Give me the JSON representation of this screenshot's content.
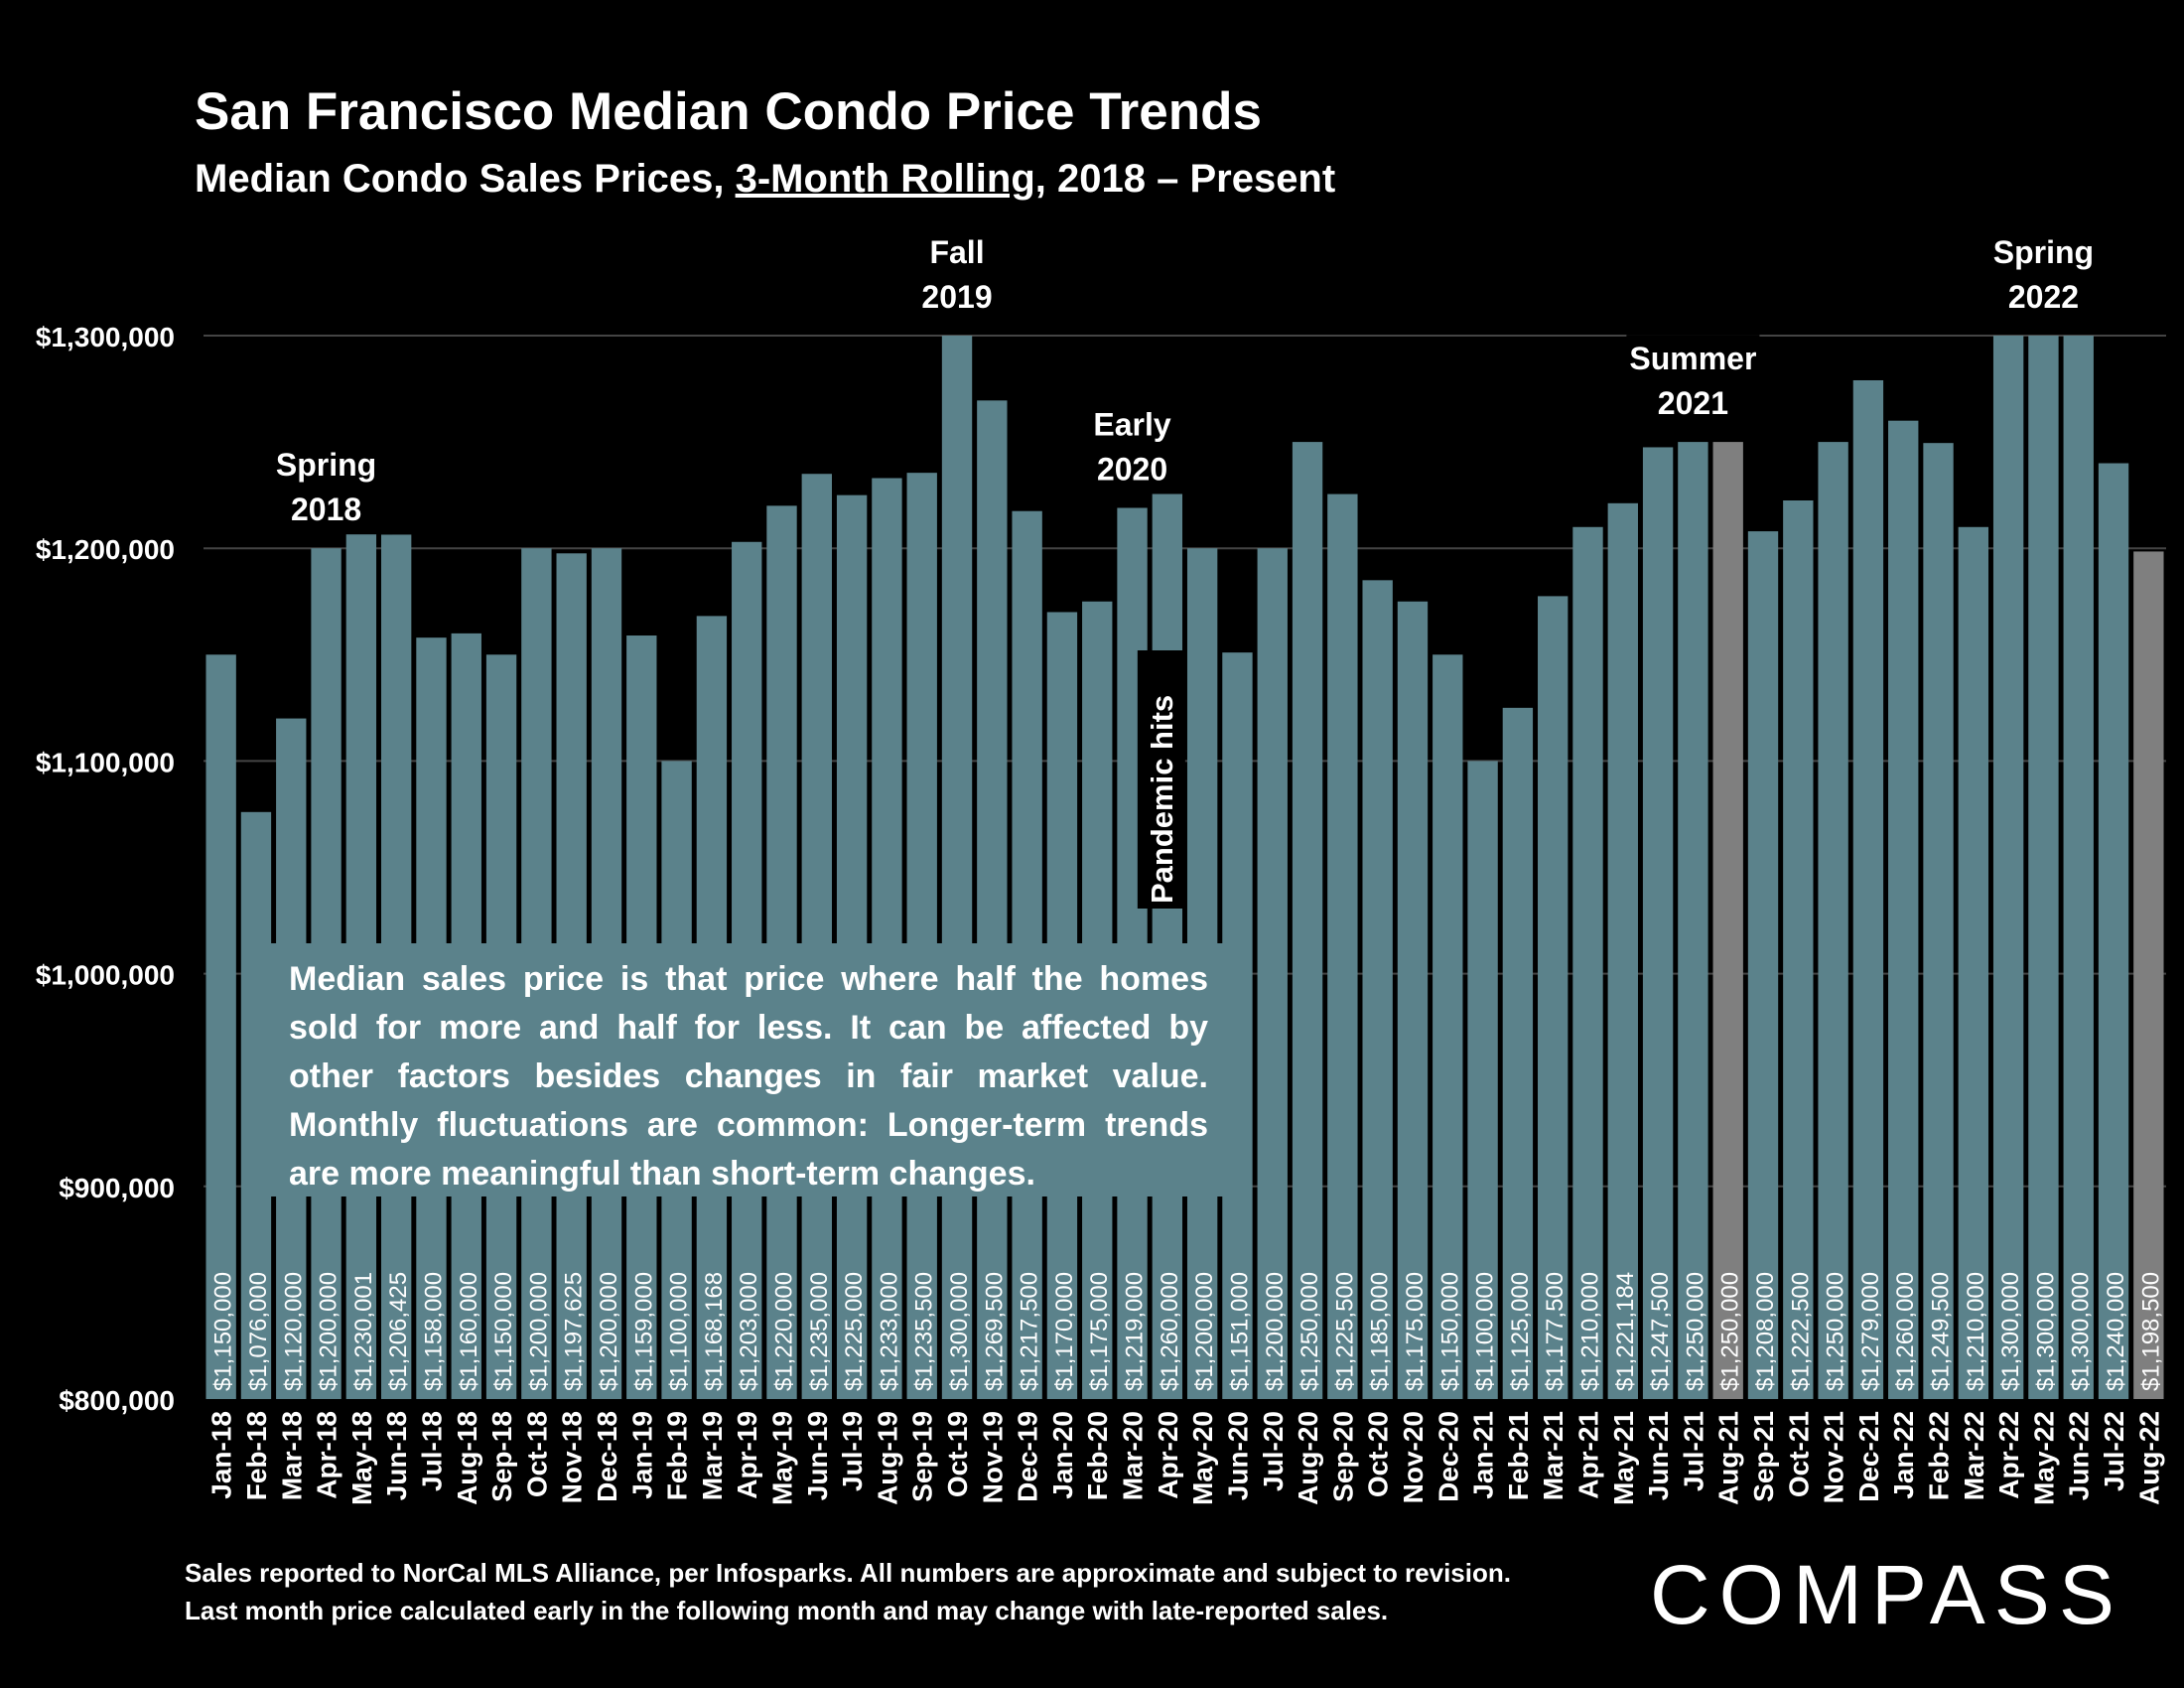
{
  "title": "San Francisco Median Condo Price Trends",
  "subtitle_pre": "Median Condo Sales Prices, ",
  "subtitle_underlined": "3-Month Rolling",
  "subtitle_post": ", 2018 – Present",
  "note": "Median sales price is that price where half the homes sold for more and half for less. It can be affected by other factors besides changes in fair market value. Monthly fluctuations are common: Longer-term trends are more meaningful than short-term changes.",
  "footnote_line1": "Sales reported to NorCal MLS Alliance, per Infosparks. All numbers are approximate and subject to revision.",
  "footnote_line2": "Last month price calculated early in the following month and may change with late-reported sales.",
  "logo": "COMPASS",
  "colors": {
    "bar": "#5b828b",
    "highlight": "#7f7f7f",
    "background": "#000000",
    "text": "#ffffff"
  },
  "chart_data": {
    "type": "bar",
    "ylim": [
      800000,
      1300000
    ],
    "yticks": [
      800000,
      900000,
      1000000,
      1100000,
      1200000,
      1300000
    ],
    "ytick_labels": [
      "$800,000",
      "$900,000",
      "$1,000,000",
      "$1,100,000",
      "$1,200,000",
      "$1,300,000"
    ],
    "grid": true,
    "categories": [
      "Jan-18",
      "Feb-18",
      "Mar-18",
      "Apr-18",
      "May-18",
      "Jun-18",
      "Jul-18",
      "Aug-18",
      "Sep-18",
      "Oct-18",
      "Nov-18",
      "Dec-18",
      "Jan-19",
      "Feb-19",
      "Mar-19",
      "Apr-19",
      "May-19",
      "Jun-19",
      "Jul-19",
      "Aug-19",
      "Sep-19",
      "Oct-19",
      "Nov-19",
      "Dec-19",
      "Jan-20",
      "Feb-20",
      "Mar-20",
      "Apr-20",
      "May-20",
      "Jun-20",
      "Jul-20",
      "Aug-20",
      "Sep-20",
      "Oct-20",
      "Nov-20",
      "Dec-20",
      "Jan-21",
      "Feb-21",
      "Mar-21",
      "Apr-21",
      "May-21",
      "Jun-21",
      "Jul-21",
      "Aug-21",
      "Sep-21",
      "Oct-21",
      "Nov-21",
      "Dec-21",
      "Jan-22",
      "Feb-22",
      "Mar-22",
      "Apr-22",
      "May-22",
      "Jun-22",
      "Jul-22",
      "Aug-22"
    ],
    "values": [
      1150000,
      1076000,
      1120000,
      1200000,
      1230001,
      1206425,
      1158000,
      1160000,
      1150000,
      1200000,
      1197625,
      1200000,
      1159000,
      1100000,
      1168168,
      1203000,
      1220000,
      1235000,
      1225000,
      1233000,
      1235500,
      1300000,
      1269500,
      1217500,
      1170000,
      1175000,
      1219000,
      1260000,
      1200000,
      1151000,
      1200000,
      1250000,
      1225500,
      1185000,
      1175000,
      1150000,
      1100000,
      1125000,
      1177500,
      1210000,
      1221184,
      1247500,
      1250000,
      1250000,
      1208000,
      1222500,
      1250000,
      1279000,
      1260000,
      1249500,
      1210000,
      1300000,
      1300000,
      1300000,
      1240000,
      1198500
    ],
    "value_labels": [
      "$1,150,000",
      "$1,076,000",
      "$1,120,000",
      "$1,200,000",
      "$1,230,001",
      "$1,206,425",
      "$1,158,000",
      "$1,160,000",
      "$1,150,000",
      "$1,200,000",
      "$1,197,625",
      "$1,200,000",
      "$1,159,000",
      "$1,100,000",
      "$1,168,168",
      "$1,203,000",
      "$1,220,000",
      "$1,235,000",
      "$1,225,000",
      "$1,233,000",
      "$1,235,500",
      "$1,300,000",
      "$1,269,500",
      "$1,217,500",
      "$1,170,000",
      "$1,175,000",
      "$1,219,000",
      "$1,260,000",
      "$1,200,000",
      "$1,151,000",
      "$1,200,000",
      "$1,250,000",
      "$1,225,500",
      "$1,185,000",
      "$1,175,000",
      "$1,150,000",
      "$1,100,000",
      "$1,125,000",
      "$1,177,500",
      "$1,210,000",
      "$1,221,184",
      "$1,247,500",
      "$1,250,000",
      "$1,250,000",
      "$1,208,000",
      "$1,222,500",
      "$1,250,000",
      "$1,279,000",
      "$1,260,000",
      "$1,249,500",
      "$1,210,000",
      "$1,300,000",
      "$1,300,000",
      "$1,300,000",
      "$1,240,000",
      "$1,198,500"
    ],
    "highlight_categories": [
      "Aug-21",
      "Aug-22"
    ],
    "annotations": [
      {
        "lines": [
          "Spring",
          "2018"
        ],
        "category": "Apr-18"
      },
      {
        "lines": [
          "Fall",
          "2019"
        ],
        "category": "Oct-19"
      },
      {
        "lines": [
          "Early",
          "2020"
        ],
        "category": "Mar-20"
      },
      {
        "lines": [
          "Summer",
          "2021"
        ],
        "category": "Jul-21"
      },
      {
        "lines": [
          "Spring",
          "2022"
        ],
        "category": "May-22"
      }
    ],
    "vertical_annotation": {
      "text": "Pandemic hits",
      "category": "Apr-20"
    }
  }
}
